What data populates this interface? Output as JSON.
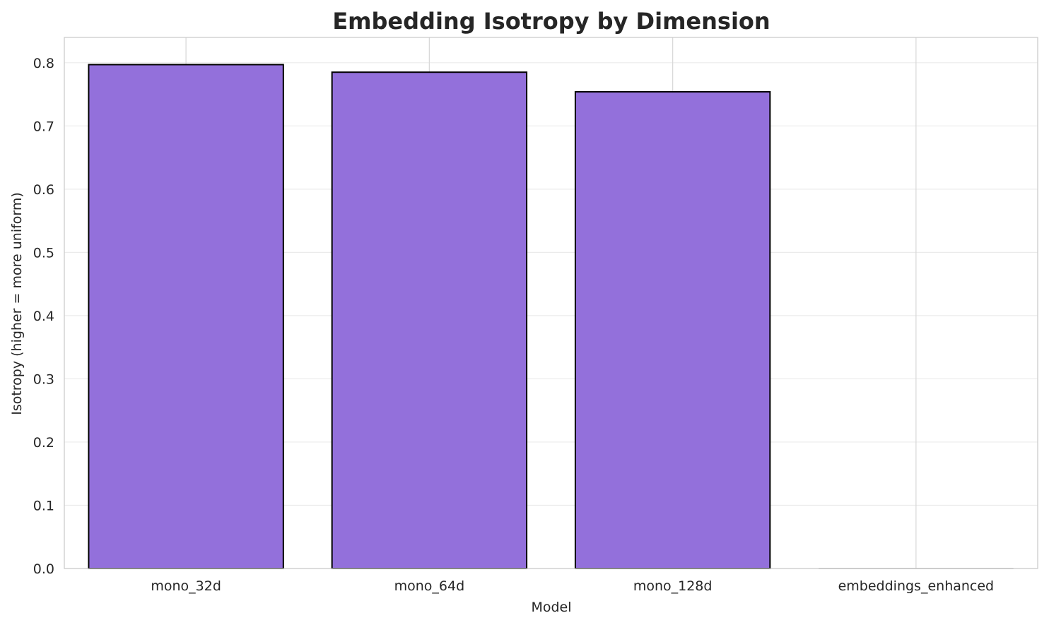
{
  "chart_data": {
    "type": "bar",
    "title": "Embedding Isotropy by Dimension",
    "xlabel": "Model",
    "ylabel": "Isotropy (higher = more uniform)",
    "categories": [
      "mono_32d",
      "mono_64d",
      "mono_128d",
      "embeddings_enhanced"
    ],
    "values": [
      0.797,
      0.785,
      0.754,
      0.0
    ],
    "ylim": [
      0,
      0.84
    ],
    "yticks": [
      0.0,
      0.1,
      0.2,
      0.3,
      0.4,
      0.5,
      0.6,
      0.7,
      0.8
    ],
    "ytick_labels": [
      "0.0",
      "0.1",
      "0.2",
      "0.3",
      "0.4",
      "0.5",
      "0.6",
      "0.7",
      "0.8"
    ],
    "grid": true,
    "colors": {
      "bar_fill": "#9370DB",
      "bar_edge": "#000000",
      "grid": "#ebebeb",
      "frame": "#cccccc",
      "text": "#262626"
    }
  }
}
